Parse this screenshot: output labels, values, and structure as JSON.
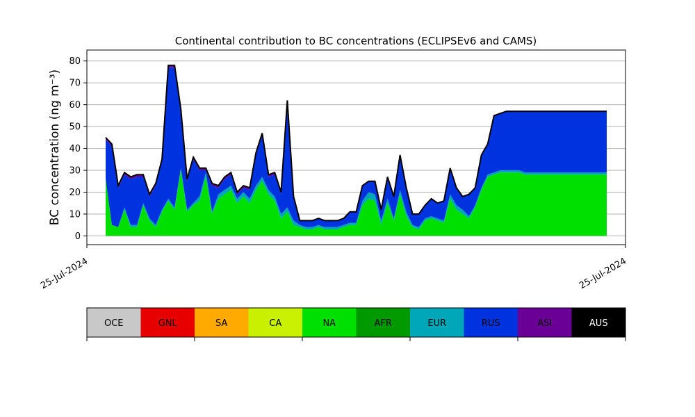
{
  "chart_data": {
    "type": "area",
    "title": "Continental contribution to BC concentrations (ECLIPSEv6 and CAMS)",
    "ylabel": "BC concentration (ng m⁻³)",
    "xlabel": "",
    "ylim": [
      -4,
      85
    ],
    "yticks": [
      0,
      10,
      20,
      30,
      40,
      50,
      60,
      70,
      80
    ],
    "grid": "y",
    "x_tick_labels": [
      "25-Jul-2024",
      "25-Jul-2024"
    ],
    "x_positions": [
      0,
      1,
      2,
      3,
      4,
      5,
      6,
      7,
      8,
      9,
      10,
      11,
      12,
      13,
      14,
      15,
      16,
      17,
      18,
      19,
      20,
      21,
      22,
      23,
      24,
      25,
      26,
      27,
      28,
      29,
      30,
      31,
      32,
      33,
      34,
      35,
      36,
      37,
      38,
      39,
      40,
      41,
      42,
      43,
      44,
      45,
      46,
      47,
      48,
      49,
      50,
      51,
      52,
      53,
      54,
      55,
      56,
      57,
      58,
      59,
      60,
      61,
      62,
      63,
      64,
      65,
      66,
      67,
      68,
      69,
      70,
      71,
      72,
      73,
      74,
      75,
      76,
      77,
      78,
      79,
      80
    ],
    "series": [
      {
        "name": "OCE",
        "color": "#c8c8c8",
        "values": [
          0,
          0,
          0,
          0,
          0,
          0,
          0,
          0,
          0,
          0,
          0,
          0,
          0,
          0,
          0,
          0,
          0,
          0,
          0,
          0,
          0,
          0,
          0,
          0,
          0,
          0,
          0,
          0,
          0,
          0,
          0,
          0,
          0,
          0,
          0,
          0,
          0,
          0,
          0,
          0,
          0,
          0,
          0,
          0,
          0,
          0,
          0,
          0,
          0,
          0,
          0,
          0,
          0,
          0,
          0,
          0,
          0,
          0,
          0,
          0,
          0,
          0,
          0,
          0,
          0,
          0,
          0,
          0,
          0,
          0,
          0,
          0,
          0,
          0,
          0,
          0,
          0,
          0,
          0,
          0,
          0
        ]
      },
      {
        "name": "GNL",
        "color": "#e60000",
        "values": [
          0,
          0,
          0,
          0,
          0,
          0,
          0,
          0,
          0,
          0,
          0,
          0,
          0,
          0,
          0,
          0,
          0,
          0,
          0,
          0,
          0,
          0,
          0,
          0,
          0,
          0,
          0,
          0,
          0,
          0,
          0,
          0,
          0,
          0,
          0,
          0,
          0,
          0,
          0,
          0,
          0,
          0,
          0,
          0,
          0,
          0,
          0,
          0,
          0,
          0,
          0,
          0,
          0,
          0,
          0,
          0,
          0,
          0,
          0,
          0,
          0,
          0,
          0,
          0,
          0,
          0,
          0,
          0,
          0,
          0,
          0,
          0,
          0,
          0,
          0,
          0,
          0,
          0,
          0,
          0,
          0
        ]
      },
      {
        "name": "SA",
        "color": "#ffaa00",
        "values": [
          0,
          0,
          0,
          0,
          0,
          0,
          0,
          0,
          0,
          0,
          0,
          0,
          0,
          0,
          0,
          0,
          0,
          0,
          0,
          0,
          0,
          0,
          0,
          0,
          0,
          0,
          0,
          0,
          0,
          0,
          0,
          0,
          0,
          0,
          0,
          0,
          0,
          0,
          0,
          0,
          0,
          0,
          0,
          0,
          0,
          0,
          0,
          0,
          0,
          0,
          0,
          0,
          0,
          0,
          0,
          0,
          0,
          0,
          0,
          0,
          0,
          0,
          0,
          0,
          0,
          0,
          0,
          0,
          0,
          0,
          0,
          0,
          0,
          0,
          0,
          0,
          0,
          0,
          0,
          0,
          0
        ]
      },
      {
        "name": "CA",
        "color": "#c8f000",
        "values": [
          0,
          0,
          0,
          0,
          0,
          0,
          0,
          0,
          0,
          0,
          0,
          0,
          0,
          0,
          0,
          0,
          0,
          0,
          0,
          0,
          0,
          0,
          0,
          0,
          0,
          0,
          0,
          0,
          0,
          0,
          0,
          0,
          0,
          0,
          0,
          0,
          0,
          0,
          0,
          0,
          0,
          0,
          0,
          0,
          0,
          0,
          0,
          0,
          0,
          0,
          0,
          0,
          0,
          0,
          0,
          0,
          0,
          0,
          0,
          0,
          0,
          0,
          0,
          0,
          0,
          0,
          0,
          0,
          0,
          0,
          0,
          0,
          0,
          0,
          0,
          0,
          0,
          0,
          0,
          0,
          0
        ]
      },
      {
        "name": "NA",
        "color": "#00e000",
        "values": [
          26,
          5,
          4,
          12,
          4,
          4,
          14,
          7,
          4,
          11,
          16,
          12,
          30,
          11,
          14,
          16,
          27,
          10,
          17,
          19,
          21,
          15,
          18,
          15,
          21,
          25,
          19,
          16,
          8,
          11,
          5,
          4,
          3,
          3,
          4,
          3,
          3,
          3,
          4,
          5,
          5,
          14,
          17,
          16,
          5,
          15,
          7,
          19,
          9,
          4,
          3,
          7,
          8,
          7,
          6,
          17,
          12,
          10,
          8,
          13,
          21,
          27,
          28,
          29,
          29,
          29,
          29,
          28,
          28,
          28,
          28,
          28,
          28,
          28,
          28,
          28,
          28,
          28,
          28,
          28,
          28
        ]
      },
      {
        "name": "AFR",
        "color": "#009900",
        "values": [
          0,
          0,
          0,
          0,
          0,
          0,
          0,
          0,
          0,
          0,
          0,
          0,
          0,
          0,
          0,
          0,
          0,
          0,
          0,
          0,
          0,
          0,
          0,
          0,
          0,
          0,
          0,
          0,
          0,
          0,
          0,
          0,
          0,
          0,
          0,
          0,
          0,
          0,
          0,
          0,
          0,
          0,
          0,
          0,
          0,
          0,
          0,
          0,
          0,
          0,
          0,
          0,
          0,
          0,
          0,
          0,
          0,
          0,
          0,
          0,
          0,
          0,
          0,
          0,
          0,
          0,
          0,
          0,
          0,
          0,
          0,
          0,
          0,
          0,
          0,
          0,
          0,
          0,
          0,
          0,
          0
        ]
      },
      {
        "name": "EUR",
        "color": "#00a7b8",
        "values": [
          0,
          0,
          0,
          1,
          1,
          1,
          1,
          1,
          1,
          1,
          1,
          1,
          1,
          1,
          1,
          2,
          2,
          1,
          2,
          2,
          2,
          2,
          2,
          2,
          2,
          2,
          2,
          2,
          2,
          2,
          2,
          1,
          1,
          1,
          1,
          1,
          1,
          1,
          1,
          1,
          1,
          2,
          3,
          3,
          2,
          2,
          1,
          2,
          2,
          1,
          1,
          1,
          1,
          1,
          1,
          2,
          2,
          2,
          1,
          1,
          1,
          1,
          1,
          1,
          1,
          1,
          1,
          1,
          1,
          1,
          1,
          1,
          1,
          1,
          1,
          1,
          1,
          1,
          1,
          1,
          1
        ]
      },
      {
        "name": "RUS",
        "color": "#0033e0",
        "values": [
          18,
          36,
          18,
          15,
          21,
          22,
          12,
          10,
          18,
          22,
          60,
          64,
          26,
          13,
          20,
          12,
          1,
          12,
          3,
          5,
          5,
          2,
          2,
          4,
          14,
          19,
          6,
          10,
          9,
          48,
          10,
          2,
          3,
          3,
          3,
          3,
          3,
          3,
          3,
          5,
          5,
          7,
          5,
          6,
          5,
          10,
          10,
          16,
          11,
          5,
          6,
          6,
          8,
          7,
          9,
          12,
          8,
          6,
          10,
          8,
          15,
          14,
          26,
          26,
          27,
          27,
          27,
          28,
          28,
          28,
          28,
          28,
          28,
          28,
          28,
          28,
          28,
          28,
          28,
          28,
          28
        ]
      },
      {
        "name": "ASI",
        "color": "#6a0096",
        "values": [
          1,
          1,
          1,
          1,
          1,
          1,
          1,
          1,
          1,
          1,
          1,
          1,
          1,
          1,
          1,
          1,
          1,
          1,
          1,
          1,
          1,
          1,
          1,
          1,
          1,
          1,
          1,
          1,
          1,
          1,
          1,
          0,
          0,
          0,
          0,
          0,
          0,
          0,
          0,
          0,
          0,
          0,
          0,
          0,
          0,
          0,
          0,
          0,
          0,
          0,
          0,
          0,
          0,
          0,
          0,
          0,
          0,
          0,
          0,
          0,
          0,
          0,
          0,
          0,
          0,
          0,
          0,
          0,
          0,
          0,
          0,
          0,
          0,
          0,
          0,
          0,
          0,
          0,
          0,
          0,
          0
        ]
      },
      {
        "name": "AUS",
        "color": "#000000",
        "values": [
          0,
          0,
          0,
          0,
          0,
          0,
          0,
          0,
          0,
          0,
          0,
          0,
          0,
          0,
          0,
          0,
          0,
          0,
          0,
          0,
          0,
          0,
          0,
          0,
          0,
          0,
          0,
          0,
          0,
          0,
          0,
          0,
          0,
          0,
          0,
          0,
          0,
          0,
          0,
          0,
          0,
          0,
          0,
          0,
          0,
          0,
          0,
          0,
          0,
          0,
          0,
          0,
          0,
          0,
          0,
          0,
          0,
          0,
          0,
          0,
          0,
          0,
          0,
          0,
          0,
          0,
          0,
          0,
          0,
          0,
          0,
          0,
          0,
          0,
          0,
          0,
          0,
          0,
          0,
          0,
          0
        ]
      }
    ],
    "total_line_color": "#000000"
  }
}
